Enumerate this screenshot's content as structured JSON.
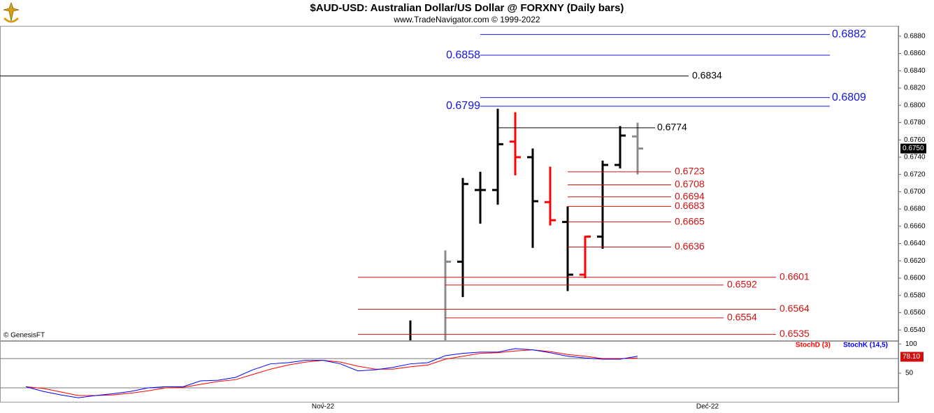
{
  "chart_data": {
    "type": "ohlc",
    "title": "$AUD-USD:  Australian Dollar/US Dollar @ FORXNY  (Daily bars)",
    "subtitle": "www.TradeNavigator.com © 1999-2022",
    "watermark": "© GenesisFT",
    "categories": [
      null,
      null,
      null,
      null,
      null,
      null,
      null,
      null,
      null,
      null,
      null,
      null,
      null,
      null,
      null,
      null,
      null,
      null,
      "Nov-22",
      null,
      null,
      null,
      null,
      null,
      null,
      null,
      null,
      null,
      null,
      null,
      null,
      null,
      null,
      null,
      null,
      null,
      null,
      null,
      null,
      null,
      "Dec-22",
      null,
      null,
      null,
      null,
      null,
      null,
      null,
      null,
      null,
      null
    ],
    "high": [
      null,
      null,
      null,
      null,
      null,
      null,
      null,
      null,
      null,
      null,
      null,
      null,
      null,
      null,
      null,
      null,
      null,
      null,
      null,
      null,
      null,
      null,
      null,
      0.6551,
      null,
      0.6632,
      0.6716,
      0.6723,
      0.6796,
      0.6792,
      0.675,
      0.6729,
      0.6683,
      0.6649,
      0.6736,
      0.6776,
      0.678,
      null,
      null,
      null,
      null,
      null,
      null,
      null,
      null,
      null,
      null,
      null,
      null,
      null,
      null
    ],
    "low": [
      null,
      null,
      null,
      null,
      null,
      null,
      null,
      null,
      null,
      null,
      null,
      null,
      null,
      null,
      null,
      null,
      null,
      null,
      null,
      null,
      null,
      null,
      null,
      0.6525,
      null,
      0.6525,
      0.6578,
      0.6663,
      0.6685,
      0.6719,
      0.6635,
      0.6661,
      0.6585,
      0.66,
      0.6634,
      0.6727,
      0.672,
      null,
      null,
      null,
      null,
      null,
      null,
      null,
      null,
      null,
      null,
      null,
      null,
      null,
      null
    ],
    "open": [
      null,
      null,
      null,
      null,
      null,
      null,
      null,
      null,
      null,
      null,
      null,
      null,
      null,
      null,
      null,
      null,
      null,
      null,
      null,
      null,
      null,
      null,
      null,
      null,
      null,
      null,
      0.6619,
      0.6702,
      0.6702,
      0.6758,
      0.674,
      0.6688,
      0.6665,
      0.6604,
      0.6648,
      0.6731,
      0.6764,
      null,
      null,
      null,
      null,
      null,
      null,
      null,
      null,
      null,
      null,
      null,
      null,
      null,
      null
    ],
    "close": [
      null,
      null,
      null,
      null,
      null,
      null,
      null,
      null,
      null,
      null,
      null,
      null,
      null,
      null,
      null,
      null,
      null,
      null,
      null,
      null,
      null,
      null,
      null,
      null,
      null,
      0.6619,
      0.6709,
      0.6702,
      0.6755,
      0.674,
      0.6689,
      0.6667,
      0.6604,
      0.6648,
      0.6731,
      0.6765,
      0.675,
      null,
      null,
      null,
      null,
      null,
      null,
      null,
      null,
      null,
      null,
      null,
      null,
      null,
      null
    ],
    "bar_colors": [
      null,
      null,
      null,
      null,
      null,
      null,
      null,
      null,
      null,
      null,
      null,
      null,
      null,
      null,
      null,
      null,
      null,
      null,
      null,
      null,
      null,
      null,
      null,
      "#000000",
      null,
      "#8c8c8c",
      "#000000",
      "#000000",
      "#000000",
      "#ff0000",
      "#000000",
      "#ff0000",
      "#000000",
      "#ff0000",
      "#000000",
      "#000000",
      "#8c8c8c",
      null,
      null,
      null,
      null,
      null,
      null,
      null,
      null,
      null,
      null,
      null,
      null,
      null,
      null
    ],
    "ylim": [
      0.6528,
      0.6892
    ],
    "yticks": [
      {
        "value": 0.654,
        "label": "0.6540"
      },
      {
        "value": 0.656,
        "label": "0.6560"
      },
      {
        "value": 0.658,
        "label": "0.6580"
      },
      {
        "value": 0.66,
        "label": "0.6600"
      },
      {
        "value": 0.662,
        "label": "0.6620"
      },
      {
        "value": 0.664,
        "label": "0.6640"
      },
      {
        "value": 0.666,
        "label": "0.6660"
      },
      {
        "value": 0.668,
        "label": "0.6680"
      },
      {
        "value": 0.67,
        "label": "0.6700"
      },
      {
        "value": 0.672,
        "label": "0.6720"
      },
      {
        "value": 0.674,
        "label": "0.6740"
      },
      {
        "value": 0.676,
        "label": "0.6760"
      },
      {
        "value": 0.678,
        "label": "0.6780"
      },
      {
        "value": 0.68,
        "label": "0.6800"
      },
      {
        "value": 0.682,
        "label": "0.6820"
      },
      {
        "value": 0.684,
        "label": "0.6840"
      },
      {
        "value": 0.686,
        "label": "0.6860"
      },
      {
        "value": 0.688,
        "label": "0.6880"
      }
    ],
    "last_price": {
      "value": 0.675,
      "label": "0.6750"
    },
    "levels": [
      {
        "value": 0.6882,
        "color": "#1515e0"
      },
      {
        "value": 0.6858,
        "color": "#1515e0"
      },
      {
        "value": 0.6834,
        "color": "#000000"
      },
      {
        "value": 0.6809,
        "color": "#1515e0"
      },
      {
        "value": 0.6799,
        "color": "#1515e0"
      },
      {
        "value": 0.6774,
        "color": "#000000"
      },
      {
        "value": 0.6723,
        "color": "#d01010"
      },
      {
        "value": 0.6708,
        "color": "#d01010"
      },
      {
        "value": 0.6694,
        "color": "#d01010"
      },
      {
        "value": 0.6683,
        "color": "#d01010"
      },
      {
        "value": 0.6665,
        "color": "#d01010"
      },
      {
        "value": 0.6636,
        "color": "#d01010"
      },
      {
        "value": 0.6601,
        "color": "#d01010"
      },
      {
        "value": 0.6592,
        "color": "#d01010"
      },
      {
        "value": 0.6564,
        "color": "#d01010"
      },
      {
        "value": 0.6554,
        "color": "#d01010"
      },
      {
        "value": 0.6535,
        "color": "#d01010"
      }
    ],
    "stochastic": {
      "type": "line",
      "series": [
        {
          "name": "StochD (3)",
          "color": "#ff0000",
          "values": [
            null,
            27,
            24,
            18,
            12,
            12,
            13,
            16,
            20,
            25,
            26,
            31,
            36,
            39,
            48,
            57,
            64,
            69,
            72,
            69,
            62,
            57,
            57,
            61,
            64,
            74,
            79,
            84,
            85,
            88,
            90,
            87,
            82,
            79,
            75,
            75,
            76,
            null,
            null,
            null,
            null,
            null,
            null,
            null,
            null,
            null,
            null,
            null,
            null,
            null,
            null
          ]
        },
        {
          "name": "StochK (14,5)",
          "color": "#0000ff",
          "values": [
            null,
            27,
            19,
            13,
            8,
            12,
            15,
            19,
            25,
            27,
            27,
            37,
            38,
            43,
            56,
            66,
            68,
            72,
            72,
            66,
            54,
            56,
            60,
            66,
            68,
            80,
            84,
            86,
            86,
            92,
            90,
            85,
            79,
            76,
            74,
            74,
            79,
            null,
            null,
            null,
            null,
            null,
            null,
            null,
            null,
            null,
            null,
            null,
            null,
            null,
            null
          ]
        }
      ],
      "ylim": [
        0,
        105
      ],
      "yticks": [
        100,
        50
      ],
      "ref_lines": [
        75,
        25
      ],
      "last_value": {
        "value": 78.1,
        "label": "78.10"
      }
    }
  }
}
